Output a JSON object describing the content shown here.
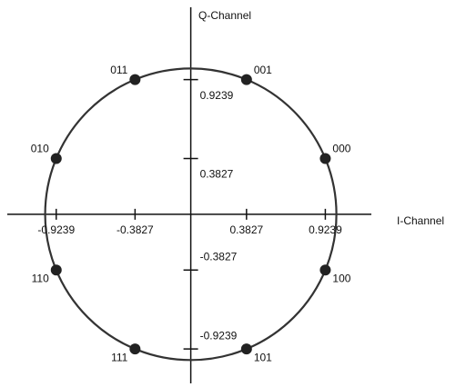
{
  "chart_data": {
    "type": "scatter",
    "xlabel": "I-Channel",
    "ylabel": "Q-Channel",
    "labels": [
      "000",
      "001",
      "011",
      "010",
      "110",
      "111",
      "101",
      "100"
    ],
    "x": [
      0.9239,
      0.3827,
      -0.3827,
      -0.9239,
      -0.9239,
      -0.3827,
      0.3827,
      0.9239
    ],
    "values": [
      0.3827,
      0.9239,
      0.9239,
      0.3827,
      -0.3827,
      -0.9239,
      -0.9239,
      -0.3827
    ],
    "color": "#222222",
    "xlim": [
      -1.26,
      1.24
    ],
    "ylim": [
      -1.16,
      1.42
    ],
    "xticks": [
      -0.9239,
      -0.3827,
      0.3827,
      0.9239
    ],
    "yticks": [
      -0.9239,
      -0.3827,
      0.3827,
      0.9239
    ]
  }
}
